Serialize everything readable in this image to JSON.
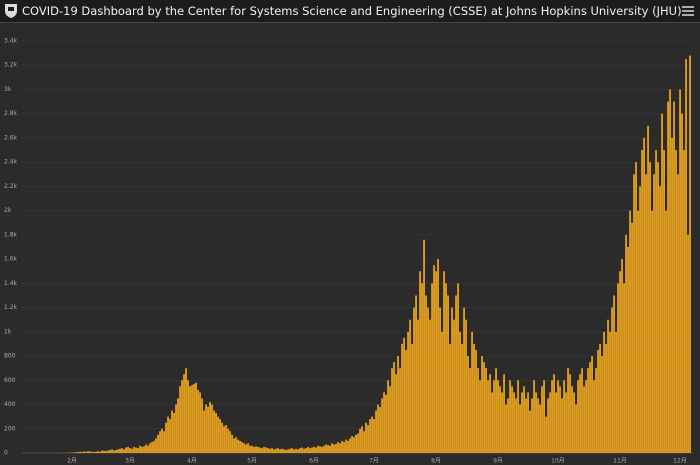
{
  "header": {
    "title": "COVID-19 Dashboard by the Center for Systems Science and Engineering (CSSE) at Johns Hopkins University (JHU)"
  },
  "chart_data": {
    "type": "bar",
    "color": "#f2a81d",
    "grid": true,
    "ylim": [
      0,
      3400
    ],
    "yticks": [
      0,
      200,
      400,
      600,
      800,
      {
        "value": 1000,
        "label": "1k"
      },
      {
        "value": 1200,
        "label": "1.2k"
      },
      {
        "value": 1400,
        "label": "1.4k"
      },
      {
        "value": 1600,
        "label": "1.6k"
      },
      {
        "value": 1800,
        "label": "1.8k"
      },
      {
        "value": 2000,
        "label": "2k"
      },
      {
        "value": 2200,
        "label": "2.2k"
      },
      {
        "value": 2400,
        "label": "2.4k"
      },
      {
        "value": 2600,
        "label": "2.6k"
      },
      {
        "value": 2800,
        "label": "2.8k"
      },
      {
        "value": 3000,
        "label": "3k"
      },
      {
        "value": 3200,
        "label": "3.2k"
      },
      {
        "value": 3400,
        "label": "3.4k"
      }
    ],
    "xticks": [
      {
        "value": 10,
        "label": "2月"
      },
      {
        "value": 39,
        "label": "3月"
      },
      {
        "value": 70,
        "label": "4月"
      },
      {
        "value": 100,
        "label": "5月"
      },
      {
        "value": 131,
        "label": "6月"
      },
      {
        "value": 161,
        "label": "7月"
      },
      {
        "value": 192,
        "label": "8月"
      },
      {
        "value": 223,
        "label": "9月"
      },
      {
        "value": 253,
        "label": "10月"
      },
      {
        "value": 284,
        "label": "11月"
      },
      {
        "value": 314,
        "label": "12月"
      }
    ],
    "values": [
      0,
      0,
      1,
      0,
      1,
      1,
      2,
      1,
      2,
      3,
      4,
      5,
      6,
      8,
      10,
      8,
      12,
      10,
      15,
      12,
      10,
      8,
      12,
      15,
      10,
      20,
      18,
      15,
      20,
      25,
      30,
      20,
      25,
      30,
      35,
      40,
      30,
      45,
      50,
      40,
      35,
      50,
      45,
      40,
      60,
      50,
      55,
      70,
      60,
      80,
      90,
      100,
      120,
      150,
      180,
      200,
      180,
      250,
      300,
      280,
      350,
      330,
      400,
      450,
      550,
      600,
      650,
      700,
      600,
      550,
      560,
      570,
      580,
      520,
      500,
      450,
      350,
      400,
      380,
      420,
      400,
      350,
      330,
      300,
      280,
      250,
      220,
      230,
      200,
      180,
      150,
      120,
      130,
      110,
      100,
      90,
      80,
      70,
      80,
      60,
      60,
      50,
      55,
      50,
      45,
      40,
      50,
      45,
      40,
      35,
      40,
      30,
      35,
      40,
      30,
      35,
      30,
      25,
      30,
      35,
      40,
      30,
      35,
      30,
      40,
      45,
      35,
      40,
      50,
      40,
      45,
      50,
      45,
      60,
      55,
      50,
      60,
      70,
      65,
      60,
      80,
      70,
      75,
      90,
      80,
      100,
      90,
      110,
      100,
      120,
      140,
      130,
      150,
      160,
      200,
      220,
      180,
      250,
      230,
      280,
      300,
      280,
      350,
      400,
      380,
      450,
      500,
      480,
      600,
      550,
      700,
      750,
      650,
      800,
      700,
      900,
      950,
      850,
      1000,
      1100,
      900,
      1200,
      1300,
      1100,
      1500,
      1400,
      1760,
      1300,
      1200,
      1100,
      1400,
      1550,
      1500,
      1600,
      1200,
      1000,
      1500,
      1400,
      1300,
      900,
      1200,
      1100,
      1300,
      1400,
      1000,
      900,
      1200,
      1100,
      800,
      700,
      1000,
      900,
      850,
      700,
      600,
      800,
      750,
      700,
      600,
      650,
      500,
      600,
      700,
      600,
      550,
      500,
      650,
      400,
      450,
      600,
      550,
      500,
      450,
      600,
      400,
      500,
      550,
      450,
      500,
      350,
      450,
      600,
      500,
      450,
      400,
      550,
      600,
      300,
      450,
      500,
      600,
      650,
      500,
      600,
      550,
      450,
      600,
      500,
      700,
      650,
      550,
      500,
      400,
      600,
      650,
      700,
      550,
      600,
      700,
      750,
      800,
      600,
      700,
      850,
      900,
      800,
      1000,
      900,
      1100,
      1000,
      1200,
      1300,
      1000,
      1400,
      1500,
      1600,
      1400,
      1800,
      1700,
      2000,
      1900,
      2300,
      2400,
      2000,
      2200,
      2500,
      2600,
      2300,
      2700,
      2400,
      2000,
      2300,
      2500,
      2400,
      2200,
      2800,
      2500,
      2000,
      2900,
      3000,
      2600,
      2900,
      2500,
      2300,
      3000,
      2800,
      2500,
      3250,
      1800,
      3280
    ]
  }
}
